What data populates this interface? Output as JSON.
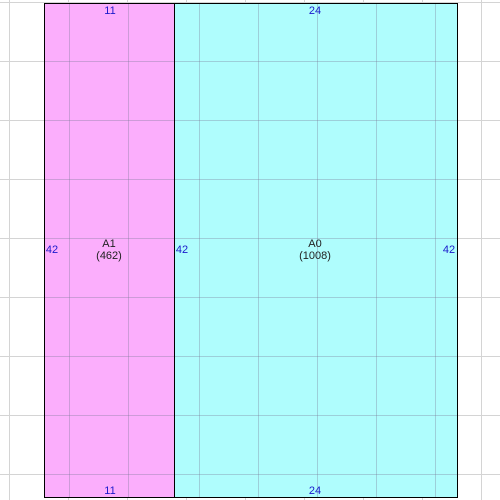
{
  "regions": [
    {
      "name": "A1",
      "area": "(462)",
      "color": "#fbaefc",
      "dim_top": "11",
      "dim_bottom": "11",
      "dim_left": "42",
      "dim_right": "42"
    },
    {
      "name": "A0",
      "area": "(1008)",
      "color": "#affdfd",
      "dim_top": "24",
      "dim_bottom": "24",
      "dim_left": "42",
      "dim_right": "42"
    }
  ]
}
